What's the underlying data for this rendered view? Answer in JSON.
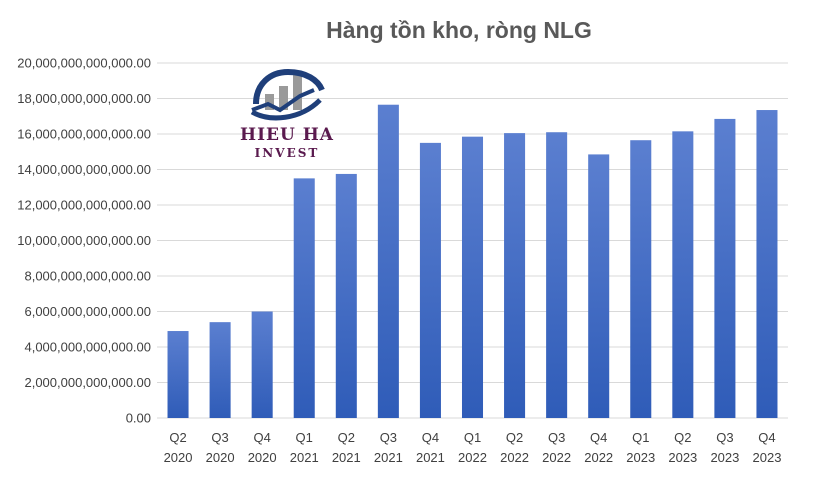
{
  "logo": {
    "brand": "HIEU HA",
    "sub": "INVEST",
    "colors": {
      "text": "#5a1a4e",
      "bars": "#9a9a9a",
      "arc": "#1f3f7a"
    }
  },
  "chart_data": {
    "type": "bar",
    "title": "Hàng tồn kho, ròng NLG",
    "xlabel": "",
    "ylabel": "",
    "categories": [
      [
        "Q2",
        "2020"
      ],
      [
        "Q3",
        "2020"
      ],
      [
        "Q4",
        "2020"
      ],
      [
        "Q1",
        "2021"
      ],
      [
        "Q2",
        "2021"
      ],
      [
        "Q3",
        "2021"
      ],
      [
        "Q4",
        "2021"
      ],
      [
        "Q1",
        "2022"
      ],
      [
        "Q2",
        "2022"
      ],
      [
        "Q3",
        "2022"
      ],
      [
        "Q4",
        "2022"
      ],
      [
        "Q1",
        "2023"
      ],
      [
        "Q2",
        "2023"
      ],
      [
        "Q3",
        "2023"
      ],
      [
        "Q4",
        "2023"
      ]
    ],
    "values": [
      4900000000000,
      5400000000000,
      6000000000000,
      13500000000000,
      13750000000000,
      17650000000000,
      15500000000000,
      15850000000000,
      16050000000000,
      16100000000000,
      14850000000000,
      15650000000000,
      16150000000000,
      16850000000000,
      17350000000000
    ],
    "ylim": [
      0,
      20000000000000
    ],
    "yticks": [
      "0.00",
      "2,000,000,000,000.00",
      "4,000,000,000,000.00",
      "6,000,000,000,000.00",
      "8,000,000,000,000.00",
      "10,000,000,000,000.00",
      "12,000,000,000,000.00",
      "14,000,000,000,000.00",
      "16,000,000,000,000.00",
      "18,000,000,000,000.00",
      "20,000,000,000,000.00"
    ],
    "grid": true,
    "legend": "none",
    "bar_color_top": "#5b7fd0",
    "bar_color_bottom": "#2f5cb8"
  }
}
